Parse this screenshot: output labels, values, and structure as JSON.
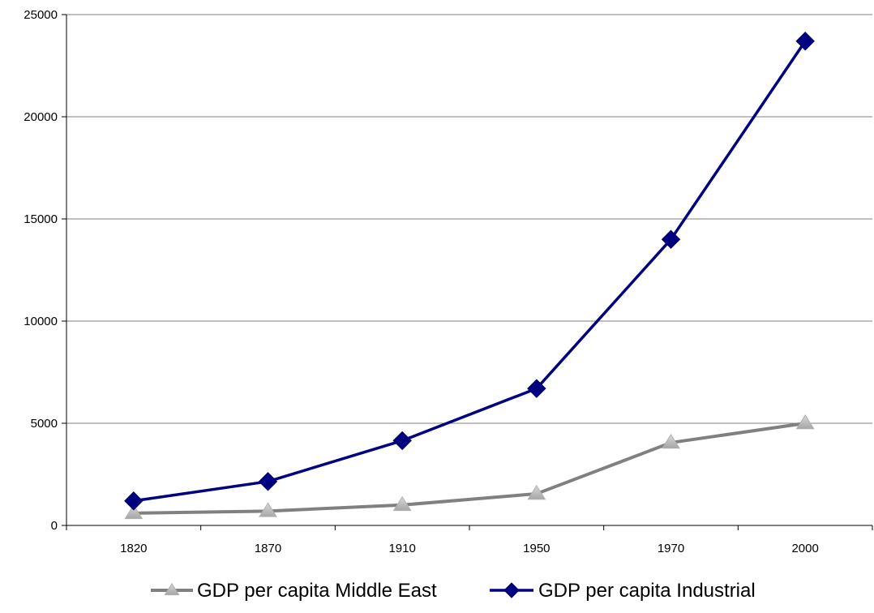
{
  "chart_data": {
    "type": "line",
    "categories": [
      "1820",
      "1870",
      "1910",
      "1950",
      "1970",
      "2000"
    ],
    "series": [
      {
        "name": "GDP per capita Middle East",
        "values": [
          600,
          700,
          1000,
          1550,
          4050,
          5000
        ],
        "color": "#808080",
        "marker": "triangle"
      },
      {
        "name": "GDP per capita Industrial",
        "values": [
          1200,
          2150,
          4150,
          6700,
          14000,
          23700
        ],
        "color": "#000080",
        "marker": "diamond"
      }
    ],
    "ylim": [
      0,
      25000
    ],
    "yticks": [
      "0",
      "5000",
      "10000",
      "15000",
      "20000",
      "25000"
    ],
    "grid": true,
    "legend_position": "bottom"
  }
}
